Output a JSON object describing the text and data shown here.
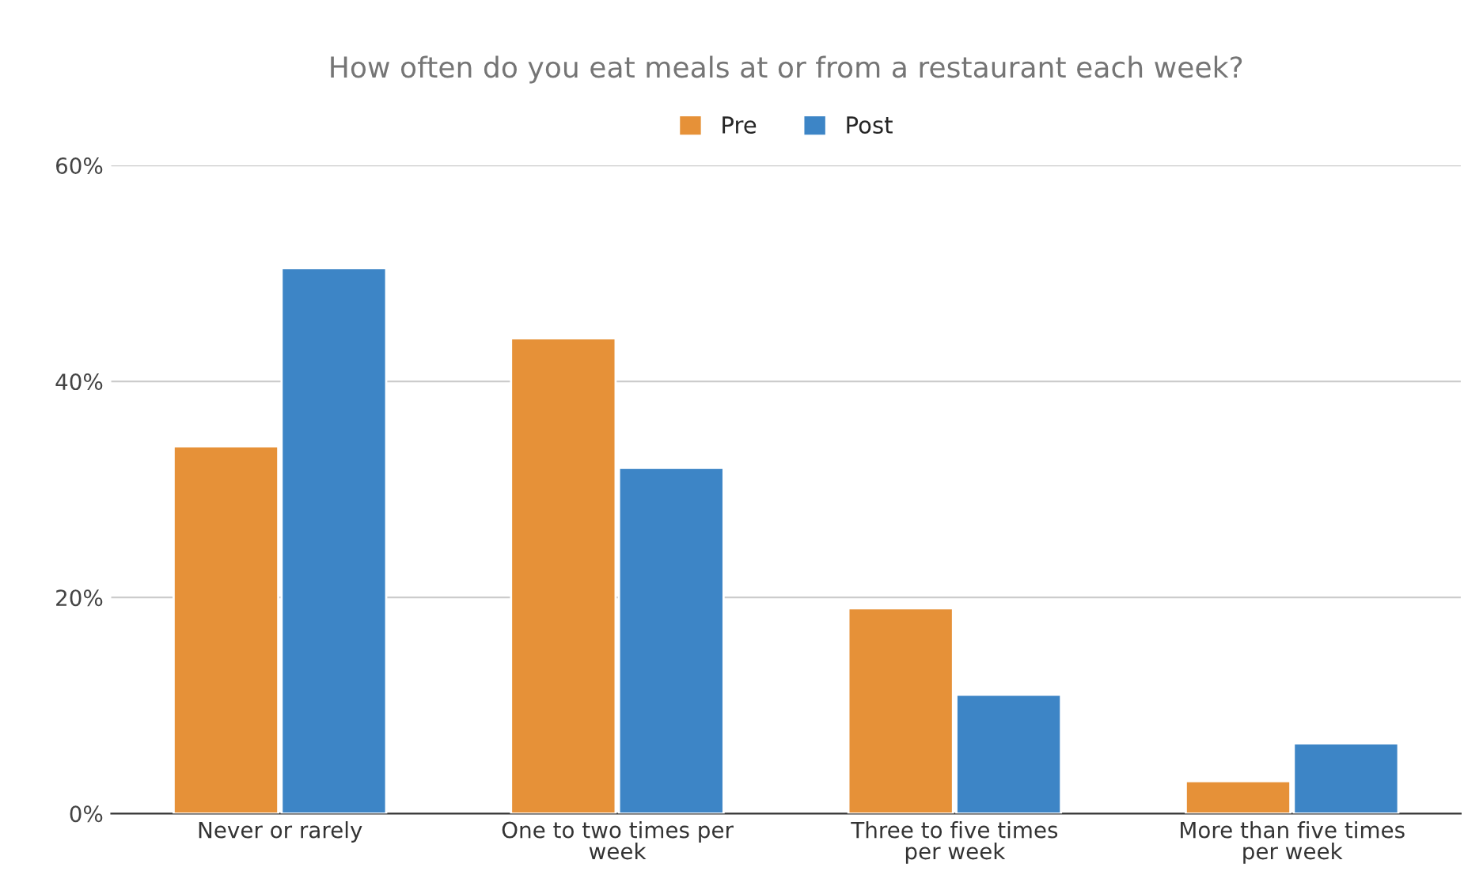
{
  "chart_data": {
    "type": "bar",
    "title": "How often do you eat meals at or from a restaurant each week?",
    "categories": [
      "Never or rarely",
      "One to two times per week",
      "Three to five times per week",
      "More than five times per week"
    ],
    "series": [
      {
        "name": "Pre",
        "color": "#e69138",
        "values": [
          34,
          44,
          19,
          3
        ]
      },
      {
        "name": "Post",
        "color": "#3d85c6",
        "values": [
          50.5,
          32,
          11,
          6.5
        ]
      }
    ],
    "ylim": [
      0,
      60
    ],
    "yticks": [
      {
        "value": 0,
        "label": "0%"
      },
      {
        "value": 20,
        "label": "20%"
      },
      {
        "value": 40,
        "label": "40%"
      },
      {
        "value": 60,
        "label": "60%"
      }
    ],
    "grid": "y",
    "legend": "top"
  }
}
